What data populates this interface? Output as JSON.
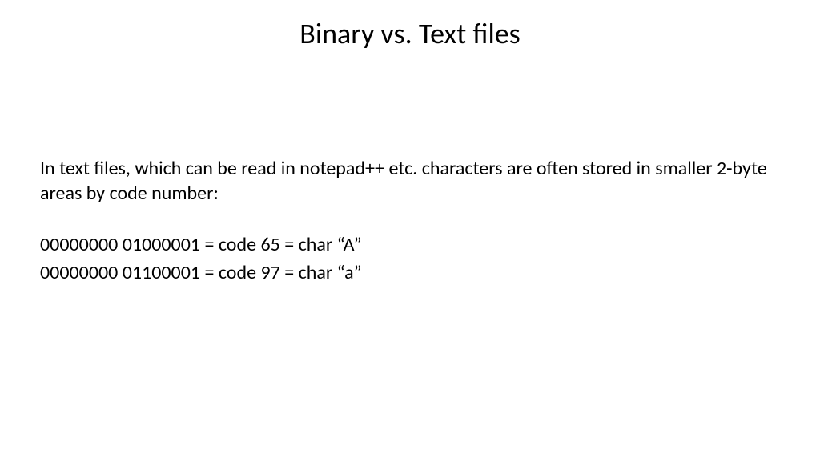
{
  "slide": {
    "title": "Binary vs. Text files",
    "paragraph": "In text files, which can be read in notepad++ etc. characters are often stored in smaller 2-byte areas by code number:",
    "examples": [
      "00000000 01000001 =  code 65  = char  “A”",
      "00000000 01100001 =  code 97  = char  “a”"
    ]
  },
  "style": {
    "background_color": "#ffffff",
    "text_color": "#000000",
    "title_fontsize": 36,
    "body_fontsize": 24,
    "font_family": "Calibri"
  }
}
